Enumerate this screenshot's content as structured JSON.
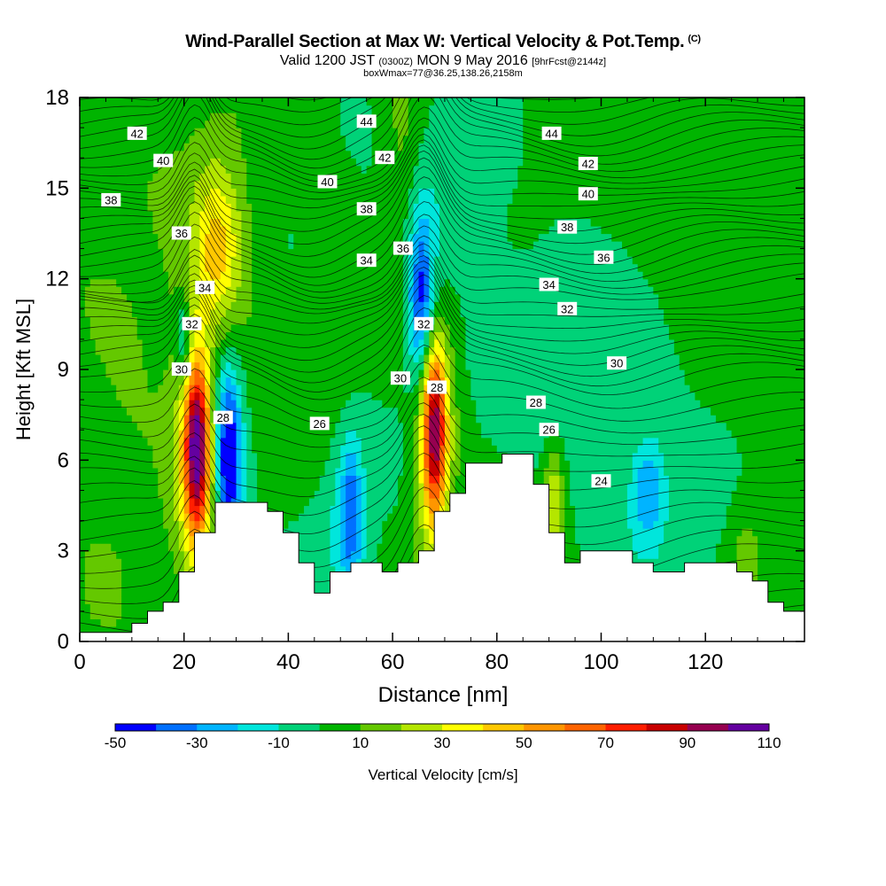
{
  "header": {
    "title": "Wind-Parallel Section at Max W: Vertical Velocity & Pot.Temp.",
    "copyright": "(C)",
    "valid_prefix": "Valid 1200 JST",
    "valid_utc": "(0300Z)",
    "valid_date": "MON 9 May 2016",
    "forecast": "[9hrFcst@2144z]",
    "box_info": "boxWmax=77@36.25,138.26,2158m"
  },
  "chart_data": {
    "type": "heatmap",
    "xlabel": "Distance [nm]",
    "ylabel": "Height [Kft MSL]",
    "xlim": [
      0,
      139
    ],
    "ylim": [
      0,
      18
    ],
    "x_ticks": [
      0,
      20,
      40,
      60,
      80,
      100,
      120
    ],
    "y_ticks": [
      0,
      3,
      6,
      9,
      12,
      15,
      18
    ],
    "colorbar": {
      "label": "Vertical Velocity [cm/s]",
      "tick_labels": [
        -50,
        -30,
        -10,
        10,
        30,
        50,
        70,
        90,
        110
      ],
      "bins": [
        -50,
        -40,
        -30,
        -20,
        -10,
        0,
        10,
        20,
        30,
        40,
        50,
        60,
        70,
        80,
        90,
        100,
        110
      ],
      "colors": [
        "#0000ff",
        "#0070ff",
        "#00b4ff",
        "#00e6dc",
        "#00d278",
        "#00b400",
        "#64c800",
        "#b4e600",
        "#ffff00",
        "#ffc800",
        "#ff9600",
        "#ff6400",
        "#ff1e00",
        "#c80000",
        "#960050",
        "#6400a0"
      ]
    },
    "terrain_kft": [
      [
        0,
        0.3
      ],
      [
        10,
        0.3
      ],
      [
        10,
        0.6
      ],
      [
        13,
        0.6
      ],
      [
        13,
        1.0
      ],
      [
        16,
        1.0
      ],
      [
        16,
        1.3
      ],
      [
        19,
        1.3
      ],
      [
        19,
        2.3
      ],
      [
        22,
        2.3
      ],
      [
        22,
        3.6
      ],
      [
        26,
        3.6
      ],
      [
        26,
        4.6
      ],
      [
        36,
        4.6
      ],
      [
        36,
        4.3
      ],
      [
        39,
        4.3
      ],
      [
        39,
        3.6
      ],
      [
        42,
        3.6
      ],
      [
        42,
        2.6
      ],
      [
        45,
        2.6
      ],
      [
        45,
        1.6
      ],
      [
        48,
        1.6
      ],
      [
        48,
        2.3
      ],
      [
        52,
        2.3
      ],
      [
        52,
        2.6
      ],
      [
        58,
        2.6
      ],
      [
        58,
        2.3
      ],
      [
        61,
        2.3
      ],
      [
        61,
        2.6
      ],
      [
        65,
        2.6
      ],
      [
        65,
        3.0
      ],
      [
        68,
        3.0
      ],
      [
        68,
        4.3
      ],
      [
        71,
        4.3
      ],
      [
        71,
        4.9
      ],
      [
        74,
        4.9
      ],
      [
        74,
        5.9
      ],
      [
        81,
        5.9
      ],
      [
        81,
        6.2
      ],
      [
        87,
        6.2
      ],
      [
        87,
        5.2
      ],
      [
        90,
        5.2
      ],
      [
        90,
        3.6
      ],
      [
        93,
        3.6
      ],
      [
        93,
        2.6
      ],
      [
        96,
        2.6
      ],
      [
        96,
        3.0
      ],
      [
        106,
        3.0
      ],
      [
        106,
        2.6
      ],
      [
        110,
        2.6
      ],
      [
        110,
        2.3
      ],
      [
        116,
        2.3
      ],
      [
        116,
        2.6
      ],
      [
        126,
        2.6
      ],
      [
        126,
        2.3
      ],
      [
        129,
        2.3
      ],
      [
        129,
        2.0
      ],
      [
        132,
        2.0
      ],
      [
        132,
        1.3
      ],
      [
        135,
        1.3
      ],
      [
        135,
        1.0
      ],
      [
        139,
        1.0
      ]
    ],
    "w_features": [
      {
        "x": 22.5,
        "y": 6.5,
        "sx": 1.7,
        "sy": 2.0,
        "w": 80
      },
      {
        "x": 22.5,
        "y": 5.8,
        "sx": 3.0,
        "sy": 3.0,
        "w": 30
      },
      {
        "x": 28.5,
        "y": 6.0,
        "sx": 1.6,
        "sy": 2.0,
        "w": -48
      },
      {
        "x": 28.0,
        "y": 6.5,
        "sx": 3.2,
        "sy": 3.2,
        "w": -18
      },
      {
        "x": 20.0,
        "y": 10.0,
        "sx": 1.0,
        "sy": 1.0,
        "w": -28
      },
      {
        "x": 68.0,
        "y": 7.0,
        "sx": 1.6,
        "sy": 2.0,
        "w": 77
      },
      {
        "x": 68.0,
        "y": 6.5,
        "sx": 3.0,
        "sy": 3.5,
        "w": 28
      },
      {
        "x": 65.5,
        "y": 11.2,
        "sx": 1.6,
        "sy": 1.8,
        "w": -38
      },
      {
        "x": 66.0,
        "y": 11.5,
        "sx": 3.0,
        "sy": 3.0,
        "w": -18
      },
      {
        "x": 52.0,
        "y": 4.2,
        "sx": 1.5,
        "sy": 1.6,
        "w": -30
      },
      {
        "x": 51.0,
        "y": 4.5,
        "sx": 3.5,
        "sy": 2.5,
        "w": -14
      },
      {
        "x": 26.5,
        "y": 13.0,
        "sx": 3.0,
        "sy": 1.8,
        "w": 30
      },
      {
        "x": 27.0,
        "y": 12.5,
        "sx": 6.0,
        "sy": 4.0,
        "w": 14
      },
      {
        "x": 109.0,
        "y": 5.0,
        "sx": 2.0,
        "sy": 1.2,
        "w": -25
      },
      {
        "x": 95.0,
        "y": 10.0,
        "sx": 12.0,
        "sy": 2.5,
        "w": -12
      },
      {
        "x": 75.0,
        "y": 15.5,
        "sx": 6.0,
        "sy": 2.0,
        "w": -12
      },
      {
        "x": 110.0,
        "y": 4.5,
        "sx": 10.0,
        "sy": 2.0,
        "w": -10
      },
      {
        "x": 62.0,
        "y": 16.5,
        "sx": 3.0,
        "sy": 2.5,
        "w": 14
      },
      {
        "x": 91.0,
        "y": 4.5,
        "sx": 1.5,
        "sy": 1.5,
        "w": 28
      },
      {
        "x": 128.0,
        "y": 3.0,
        "sx": 3.0,
        "sy": 1.5,
        "w": 16
      },
      {
        "x": 48.0,
        "y": 10.0,
        "sx": 4.0,
        "sy": 2.5,
        "w": 8
      },
      {
        "x": 10.0,
        "y": 10.0,
        "sx": 8.0,
        "sy": 4.0,
        "w": 9
      },
      {
        "x": 115.0,
        "y": 15.0,
        "sx": 15.0,
        "sy": 3.0,
        "w": 8
      },
      {
        "x": 5.0,
        "y": 3.0,
        "sx": 6.0,
        "sy": 2.5,
        "w": 6
      }
    ],
    "theta_labels": [
      {
        "text": "42",
        "x": 11,
        "y": 16.8
      },
      {
        "text": "40",
        "x": 16,
        "y": 15.9
      },
      {
        "text": "38",
        "x": 6,
        "y": 14.6
      },
      {
        "text": "36",
        "x": 19.5,
        "y": 13.5
      },
      {
        "text": "34",
        "x": 24,
        "y": 11.7
      },
      {
        "text": "32",
        "x": 21.5,
        "y": 10.5
      },
      {
        "text": "30",
        "x": 19.5,
        "y": 9.0
      },
      {
        "text": "28",
        "x": 27.5,
        "y": 7.4
      },
      {
        "text": "44",
        "x": 55,
        "y": 17.2
      },
      {
        "text": "42",
        "x": 58.5,
        "y": 16.0
      },
      {
        "text": "40",
        "x": 47.5,
        "y": 15.2
      },
      {
        "text": "38",
        "x": 55,
        "y": 14.3
      },
      {
        "text": "36",
        "x": 62,
        "y": 13.0
      },
      {
        "text": "34",
        "x": 55,
        "y": 12.6
      },
      {
        "text": "32",
        "x": 66,
        "y": 10.5
      },
      {
        "text": "30",
        "x": 61.5,
        "y": 8.7
      },
      {
        "text": "28",
        "x": 68.5,
        "y": 8.4
      },
      {
        "text": "26",
        "x": 46,
        "y": 7.2
      },
      {
        "text": "44",
        "x": 90.5,
        "y": 16.8
      },
      {
        "text": "42",
        "x": 97.5,
        "y": 15.8
      },
      {
        "text": "40",
        "x": 97.5,
        "y": 14.8
      },
      {
        "text": "38",
        "x": 93.5,
        "y": 13.7
      },
      {
        "text": "36",
        "x": 100.5,
        "y": 12.7
      },
      {
        "text": "34",
        "x": 90,
        "y": 11.8
      },
      {
        "text": "32",
        "x": 93.5,
        "y": 11.0
      },
      {
        "text": "30",
        "x": 103,
        "y": 9.2
      },
      {
        "text": "28",
        "x": 87.5,
        "y": 7.9
      },
      {
        "text": "26",
        "x": 90,
        "y": 7.0
      },
      {
        "text": "24",
        "x": 100,
        "y": 5.3
      }
    ]
  }
}
